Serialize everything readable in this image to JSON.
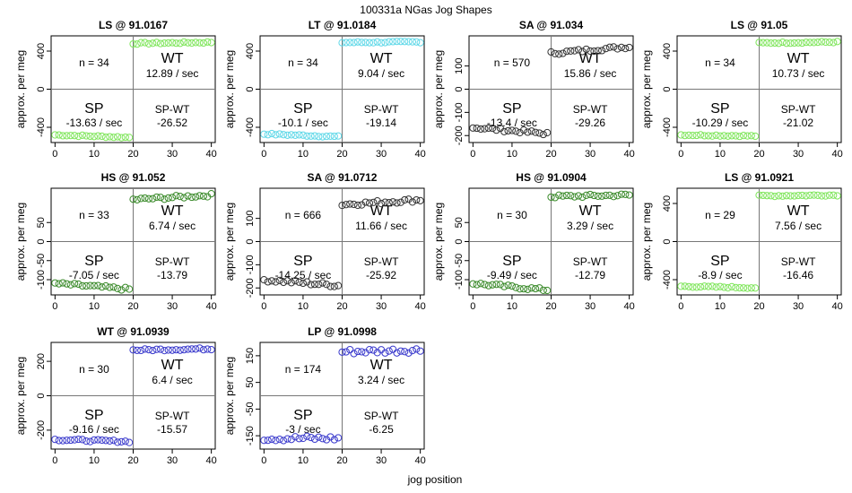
{
  "title": "100331a   NGas Jog Shapes",
  "xlabel": "jog position",
  "ylabel": "approx. per meg",
  "chart_data": [
    {
      "type": "scatter",
      "title": "LS @ 91.0167",
      "color": "#7ee55a",
      "ylim": [
        -560,
        560
      ],
      "yticks": [
        -400,
        0,
        400
      ],
      "xlim": [
        -1,
        41
      ],
      "xticks": [
        0,
        10,
        20,
        30,
        40
      ],
      "n": "n = 34",
      "wt": "12.89 / sec",
      "sp": "-13.63 / sec",
      "spwt": "-26.52",
      "sp_level": -480,
      "sp_slope": -1.4,
      "wt_level": 480,
      "wt_slope": 0.6,
      "jitter": 8
    },
    {
      "type": "scatter",
      "title": "LT @ 91.0184",
      "color": "#5fd8e8",
      "ylim": [
        -560,
        560
      ],
      "yticks": [
        -400,
        0,
        400
      ],
      "xlim": [
        -1,
        41
      ],
      "xticks": [
        0,
        10,
        20,
        30,
        40
      ],
      "n": "n = 34",
      "wt": "9.04 / sec",
      "sp": "-10.1 / sec",
      "spwt": "-19.14",
      "sp_level": -470,
      "sp_slope": -1.5,
      "wt_level": 490,
      "wt_slope": 0.3,
      "jitter": 8
    },
    {
      "type": "scatter",
      "title": "SA @ 91.034",
      "color": "#333333",
      "ylim": [
        -230,
        230
      ],
      "yticks": [
        -200,
        -100,
        0,
        100
      ],
      "xlim": [
        -1,
        41
      ],
      "xticks": [
        0,
        10,
        20,
        30,
        40
      ],
      "n": "n = 570",
      "wt": "15.86 / sec",
      "sp": "-13.4 / sec",
      "spwt": "-29.26",
      "sp_level": -165,
      "sp_slope": -1.4,
      "wt_level": 155,
      "wt_slope": 1.4,
      "jitter": 7
    },
    {
      "type": "scatter",
      "title": "LS @ 91.05",
      "color": "#7ee55a",
      "ylim": [
        -560,
        560
      ],
      "yticks": [
        -400,
        0,
        400
      ],
      "xlim": [
        -1,
        41
      ],
      "xticks": [
        0,
        10,
        20,
        30,
        40
      ],
      "n": "n = 34",
      "wt": "10.73 / sec",
      "sp": "-10.29 / sec",
      "spwt": "-21.02",
      "sp_level": -480,
      "sp_slope": -0.6,
      "wt_level": 485,
      "wt_slope": 0.5,
      "jitter": 7
    },
    {
      "type": "scatter",
      "title": "HS @ 91.052",
      "color": "#3a8a2a",
      "ylim": [
        -140,
        140
      ],
      "yticks": [
        -100,
        -50,
        0,
        50
      ],
      "xlim": [
        -1,
        41
      ],
      "xticks": [
        0,
        10,
        20,
        30,
        40
      ],
      "n": "n = 33",
      "wt": "6.74 / sec",
      "sp": "-7.05 / sec",
      "spwt": "-13.79",
      "sp_level": -110,
      "sp_slope": -0.8,
      "wt_level": 110,
      "wt_slope": 0.6,
      "jitter": 4
    },
    {
      "type": "scatter",
      "title": "SA @ 91.0712",
      "color": "#333333",
      "ylim": [
        -230,
        230
      ],
      "yticks": [
        -200,
        -100,
        0,
        100
      ],
      "xlim": [
        -1,
        41
      ],
      "xticks": [
        0,
        10,
        20,
        30,
        40
      ],
      "n": "n = 666",
      "wt": "11.66 / sec",
      "sp": "-14.25 / sec",
      "spwt": "-25.92",
      "sp_level": -165,
      "sp_slope": -1.3,
      "wt_level": 160,
      "wt_slope": 1.0,
      "jitter": 8
    },
    {
      "type": "scatter",
      "title": "HS @ 91.0904",
      "color": "#3a8a2a",
      "ylim": [
        -140,
        140
      ],
      "yticks": [
        -100,
        -50,
        0,
        50
      ],
      "xlim": [
        -1,
        41
      ],
      "xticks": [
        0,
        10,
        20,
        30,
        40
      ],
      "n": "n = 30",
      "wt": "3.29 / sec",
      "sp": "-9.49 / sec",
      "spwt": "-12.79",
      "sp_level": -110,
      "sp_slope": -0.9,
      "wt_level": 118,
      "wt_slope": 0.2,
      "jitter": 4
    },
    {
      "type": "scatter",
      "title": "LS @ 91.0921",
      "color": "#7ee55a",
      "ylim": [
        -560,
        560
      ],
      "yticks": [
        -400,
        0,
        400
      ],
      "xlim": [
        -1,
        41
      ],
      "xticks": [
        0,
        10,
        20,
        30,
        40
      ],
      "n": "n = 29",
      "wt": "7.56 / sec",
      "sp": "-8.9 / sec",
      "spwt": "-16.46",
      "sp_level": -470,
      "sp_slope": -0.8,
      "wt_level": 480,
      "wt_slope": 0.4,
      "jitter": 8
    },
    {
      "type": "scatter",
      "title": "WT @ 91.0939",
      "color": "#3a3acc",
      "ylim": [
        -310,
        310
      ],
      "yticks": [
        -200,
        0,
        200
      ],
      "xlim": [
        -1,
        41
      ],
      "xticks": [
        0,
        10,
        20,
        30,
        40
      ],
      "n": "n = 30",
      "wt": "6.4 / sec",
      "sp": "-9.16 / sec",
      "spwt": "-15.57",
      "sp_level": -255,
      "sp_slope": -0.6,
      "wt_level": 265,
      "wt_slope": 0.4,
      "jitter": 6
    },
    {
      "type": "scatter",
      "title": "LP @ 91.0998",
      "color": "#3a3acc",
      "ylim": [
        -200,
        200
      ],
      "yticks": [
        -150,
        -50,
        50,
        150
      ],
      "xlim": [
        -1,
        41
      ],
      "xticks": [
        0,
        10,
        20,
        30,
        40
      ],
      "n": "n = 174",
      "wt": "3.24 / sec",
      "sp": "-3 / sec",
      "spwt": "-6.25",
      "sp_level": -160,
      "sp_slope": 0.0,
      "wt_level": 165,
      "wt_slope": 0.3,
      "jitter": 10
    }
  ]
}
